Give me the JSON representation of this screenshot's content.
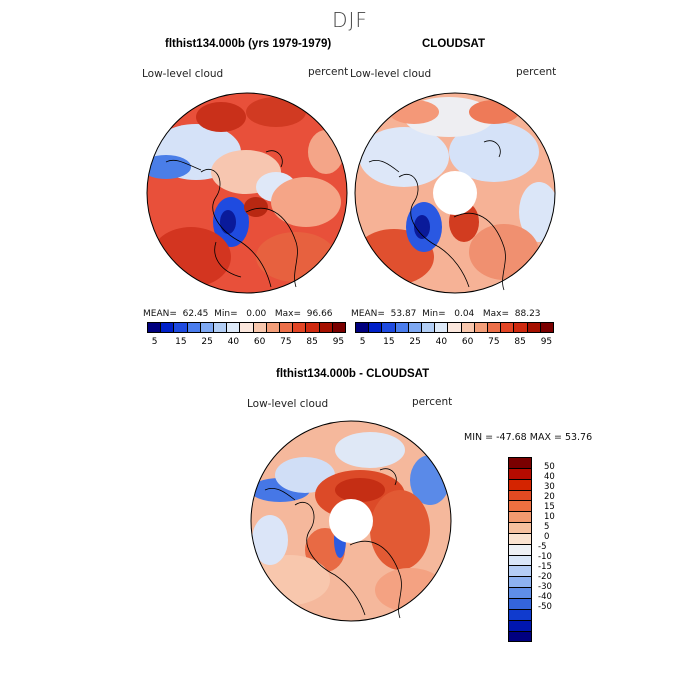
{
  "title": "DJF",
  "panels": [
    {
      "title": "flthist134.000b (yrs 1979-1979)",
      "left_label": "Low-level cloud",
      "right_label": "percent",
      "stats": {
        "mean_label": "MEAN=",
        "mean": "62.45",
        "min_label": "Min=",
        "min": "0.00",
        "max_label": "Max=",
        "max": "96.66"
      }
    },
    {
      "title": "CLOUDSAT",
      "left_label": "Low-level cloud",
      "right_label": "percent",
      "stats": {
        "mean_label": "MEAN=",
        "mean": "53.87",
        "min_label": "Min=",
        "min": "0.04",
        "max_label": "Max=",
        "max": "88.23"
      }
    },
    {
      "title": "flthist134.000b - CLOUDSAT",
      "left_label": "Low-level cloud",
      "right_label": "percent",
      "minmax_text": "MIN = -47.68 MAX =  53.76"
    }
  ],
  "colorbar_top": {
    "colors": [
      "#00007f",
      "#0020c8",
      "#1f4be0",
      "#4b7ded",
      "#7ea8f2",
      "#b2cef5",
      "#dde9f8",
      "#fbe7dd",
      "#f8c7ad",
      "#f39e79",
      "#ec6f49",
      "#e24525",
      "#cf2a10",
      "#a51000",
      "#7a0000"
    ],
    "tick_labels": [
      "5",
      "15",
      "25",
      "40",
      "60",
      "75",
      "85",
      "95"
    ]
  },
  "colorbar_diff": {
    "colors": [
      "#7a0000",
      "#b50b00",
      "#d42400",
      "#e34a22",
      "#ee7040",
      "#f39a6f",
      "#f7c09e",
      "#fbe2cf",
      "#eef0f4",
      "#d9e6f8",
      "#b4cdf5",
      "#8db2f1",
      "#5f8ee8",
      "#3465dc",
      "#103bce",
      "#0016b0",
      "#000080"
    ],
    "tick_labels": [
      "50",
      "40",
      "30",
      "20",
      "15",
      "10",
      "5",
      "0",
      "-5",
      "-10",
      "-15",
      "-20",
      "-30",
      "-40",
      "-50"
    ]
  }
}
